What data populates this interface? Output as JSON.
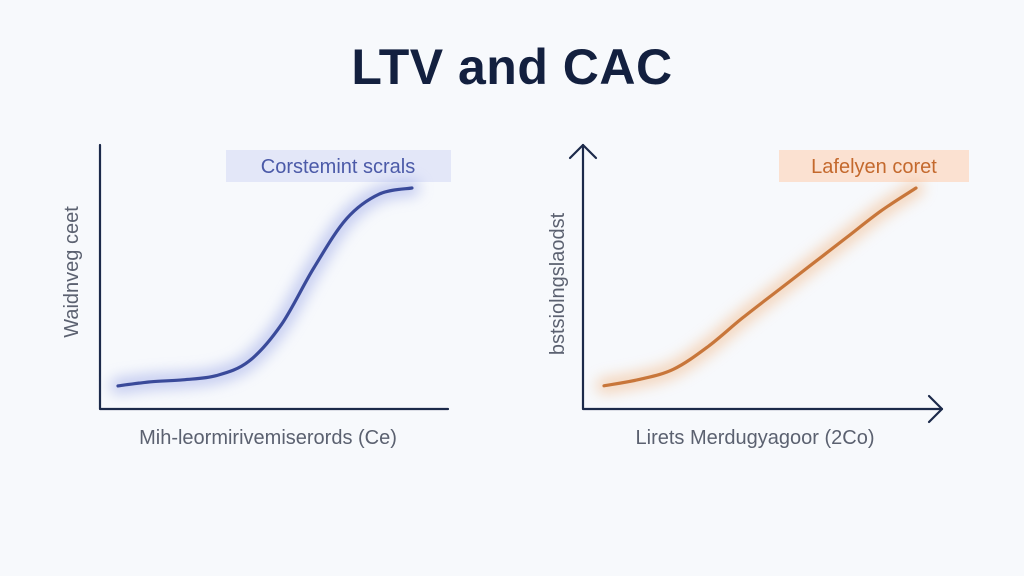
{
  "title": "LTV and CAC",
  "chart_data": [
    {
      "type": "line",
      "legend": "Corstemint scrals",
      "xlabel": "Mih-leormirivemiserords (Ce)",
      "ylabel": "Waidnveg ceet",
      "color": "#3a4a9a",
      "glow": "#9aa6e6",
      "legend_bg": "#e3e7f8",
      "legend_color": "#4b5aa8",
      "xlim": [
        0,
        10
      ],
      "ylim": [
        0,
        10
      ],
      "x": [
        0,
        1,
        2,
        3,
        4,
        5,
        6,
        7,
        8,
        9
      ],
      "y": [
        0.3,
        0.5,
        0.6,
        0.8,
        1.5,
        3.3,
        6.1,
        8.5,
        9.7,
        10.0
      ]
    },
    {
      "type": "line",
      "legend": "Lafelyen coret",
      "xlabel": "Lirets Merdugyagoor (2Co)",
      "ylabel": "bstsiolngslaodst",
      "color": "#c8763a",
      "glow": "#f1b787",
      "legend_bg": "#fbe1d1",
      "legend_color": "#c4692d",
      "xlim": [
        0,
        10
      ],
      "ylim": [
        0,
        10
      ],
      "x": [
        0,
        1,
        2,
        3,
        4,
        5,
        6,
        7,
        8,
        9
      ],
      "y": [
        0.4,
        0.7,
        1.2,
        2.3,
        3.7,
        5.0,
        6.3,
        7.6,
        8.9,
        10.0
      ]
    }
  ]
}
